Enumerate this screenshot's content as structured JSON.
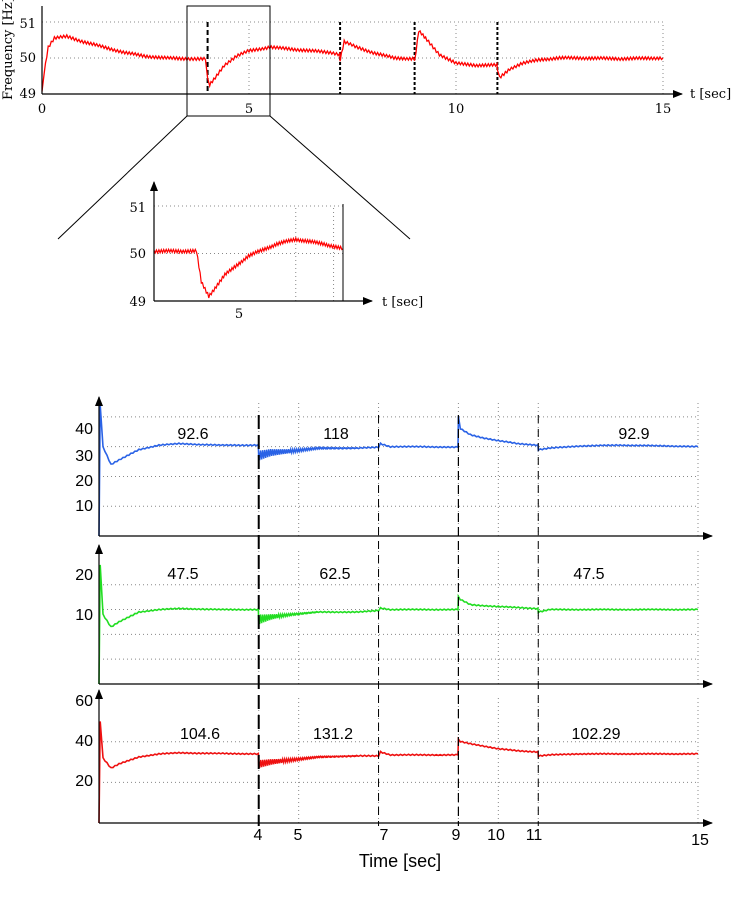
{
  "chart_data": [
    {
      "id": "freq",
      "type": "line",
      "title": "",
      "xlabel": "t [sec]",
      "ylabel": "Frequency [Hz]",
      "xlim": [
        0,
        15
      ],
      "ylim": [
        49,
        51
      ],
      "x_ticks": [
        "0",
        "5",
        "10",
        "15"
      ],
      "y_ticks": [
        "49",
        "50",
        "51"
      ],
      "grid": true,
      "events": [
        4,
        7.2,
        9,
        11
      ],
      "zoom_window": [
        3.5,
        5.5
      ],
      "series": [
        {
          "color": "#ff0000",
          "x": [
            0,
            0.05,
            0.15,
            0.3,
            0.6,
            1,
            1.5,
            2,
            2.5,
            3,
            3.5,
            3.95,
            4,
            4.05,
            4.15,
            4.4,
            4.7,
            5,
            5.5,
            6,
            6.5,
            7,
            7.19,
            7.2,
            7.3,
            7.6,
            8,
            8.5,
            8.99,
            9,
            9.1,
            9.3,
            9.6,
            10,
            10.5,
            10.99,
            11,
            11.05,
            11.3,
            11.6,
            12,
            12.5,
            13,
            14,
            15
          ],
          "y": [
            49.05,
            49.6,
            50.3,
            50.55,
            50.6,
            50.45,
            50.3,
            50.15,
            50.05,
            50,
            49.98,
            49.97,
            49.4,
            49.25,
            49.4,
            49.8,
            50.05,
            50.2,
            50.3,
            50.25,
            50.2,
            50.15,
            50.1,
            49.95,
            50.45,
            50.3,
            50.15,
            50.0,
            49.98,
            49.9,
            50.75,
            50.5,
            50.1,
            49.85,
            49.8,
            49.8,
            49.7,
            49.45,
            49.7,
            49.85,
            49.95,
            50.0,
            50.0,
            49.98,
            50.0
          ]
        }
      ]
    },
    {
      "id": "zoom",
      "type": "line",
      "title": "",
      "xlabel": "t [sec]",
      "ylabel": "",
      "xlim": [
        3.5,
        5.5
      ],
      "ylim": [
        49,
        51
      ],
      "x_ticks": [
        "5"
      ],
      "y_ticks": [
        "49",
        "50",
        "51"
      ],
      "grid": true,
      "series": [
        {
          "color": "#ff0000",
          "x": [
            3.5,
            3.95,
            4,
            4.08,
            4.25,
            4.5,
            4.8,
            5,
            5.3,
            5.5
          ],
          "y": [
            50.05,
            50.05,
            49.4,
            49.1,
            49.55,
            49.95,
            50.2,
            50.3,
            50.2,
            50.1
          ]
        }
      ]
    },
    {
      "id": "p1",
      "type": "line",
      "title": "",
      "xlim": [
        0,
        15
      ],
      "ylim": [
        0,
        45
      ],
      "y_ticks": [
        "10",
        "20",
        "30",
        "40"
      ],
      "grid": true,
      "annotations": [
        "92.6",
        "118",
        "92.9"
      ],
      "series": [
        {
          "color": "#2b63e6",
          "x": [
            0,
            0.03,
            0.1,
            0.3,
            0.5,
            1,
            1.5,
            2,
            3,
            3.99,
            4,
            4.3,
            4.8,
            5.5,
            6.5,
            7,
            7.05,
            7.3,
            8,
            8.99,
            9,
            9.05,
            9.3,
            9.6,
            10,
            10.5,
            10.99,
            11,
            11.3,
            12,
            13,
            14,
            15
          ],
          "y": [
            0,
            44,
            30,
            24,
            25.5,
            29,
            30.5,
            31,
            30.5,
            30.5,
            27,
            28,
            28.5,
            29.5,
            29.5,
            29.8,
            31,
            30,
            30,
            29.8,
            40,
            36,
            34,
            33,
            32,
            31,
            30.5,
            29,
            29.5,
            30.2,
            30.5,
            30.3,
            30
          ]
        }
      ]
    },
    {
      "id": "p2",
      "type": "line",
      "title": "",
      "xlim": [
        0,
        15
      ],
      "ylim": [
        0,
        27
      ],
      "y_ticks": [
        "10",
        "20"
      ],
      "grid": true,
      "annotations": [
        "47.5",
        "62.5",
        "47.5"
      ],
      "series": [
        {
          "color": "#22dd22",
          "x": [
            0,
            0.03,
            0.1,
            0.3,
            0.5,
            1,
            1.5,
            2,
            3,
            3.99,
            4,
            4.3,
            4.8,
            5.5,
            6.5,
            7,
            7.05,
            7.3,
            8,
            8.99,
            9,
            9.05,
            9.3,
            9.6,
            10,
            10.5,
            10.99,
            11,
            11.3,
            12,
            13,
            15
          ],
          "y": [
            0,
            24,
            14,
            11.5,
            12.5,
            14.5,
            15,
            15.2,
            15,
            15,
            13,
            13.5,
            14,
            14.5,
            14.5,
            14.8,
            15.3,
            15,
            15,
            15,
            17.5,
            17,
            16,
            15.8,
            15.6,
            15.4,
            15.2,
            14.5,
            15,
            15,
            15,
            15
          ]
        }
      ]
    },
    {
      "id": "p3",
      "type": "line",
      "title": "",
      "xlabel": "Time [sec]",
      "xlim": [
        0,
        15
      ],
      "ylim": [
        0,
        62
      ],
      "x_ticks": [
        "4",
        "5",
        "7",
        "9",
        "10",
        "11",
        "15"
      ],
      "y_ticks": [
        "20",
        "40",
        "60"
      ],
      "grid": true,
      "annotations": [
        "104.6",
        "131.2",
        "102.29"
      ],
      "series": [
        {
          "color": "#ee1111",
          "x": [
            0,
            0.03,
            0.1,
            0.3,
            0.5,
            1,
            1.5,
            2,
            3,
            3.99,
            4,
            4.3,
            4.8,
            5.5,
            6.5,
            7,
            7.05,
            7.3,
            8,
            8.99,
            9,
            9.05,
            9.3,
            9.6,
            10,
            10.5,
            10.99,
            11,
            11.3,
            12,
            13,
            15
          ],
          "y": [
            0,
            50,
            32,
            27,
            29,
            32.5,
            34,
            34.5,
            34.2,
            34,
            29,
            30,
            31,
            32.5,
            33,
            33,
            35,
            33.5,
            33.5,
            33.5,
            41,
            40,
            39,
            38,
            36.5,
            35.5,
            35,
            33,
            33.5,
            34,
            34,
            34
          ]
        }
      ]
    }
  ]
}
